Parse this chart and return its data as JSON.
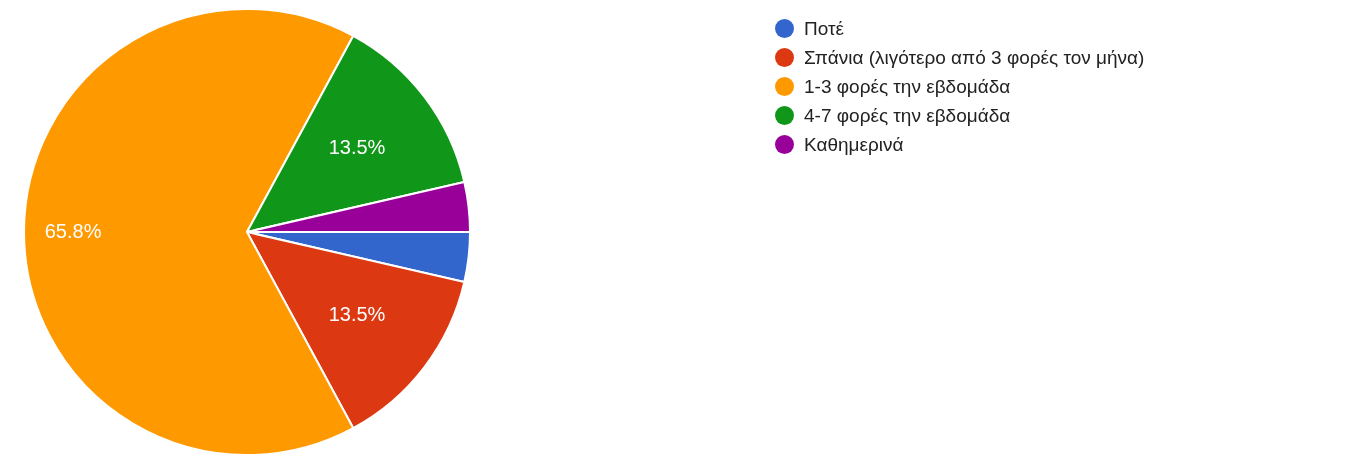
{
  "chart_data": {
    "type": "pie",
    "categories": [
      "Ποτέ",
      "Σπάνια (λιγότερο από 3 φορές τον μήνα)",
      "1-3 φορές την εβδομάδα",
      "4-7 φορές την εβδομάδα",
      "Καθημερινά"
    ],
    "values": [
      3.6,
      13.5,
      65.8,
      13.5,
      3.6
    ],
    "colors": [
      "#3366cc",
      "#dc3912",
      "#ff9900",
      "#109618",
      "#990099"
    ],
    "value_labels": [
      null,
      "13.5%",
      "65.8%",
      "13.5%",
      null
    ],
    "legend": "top right"
  }
}
